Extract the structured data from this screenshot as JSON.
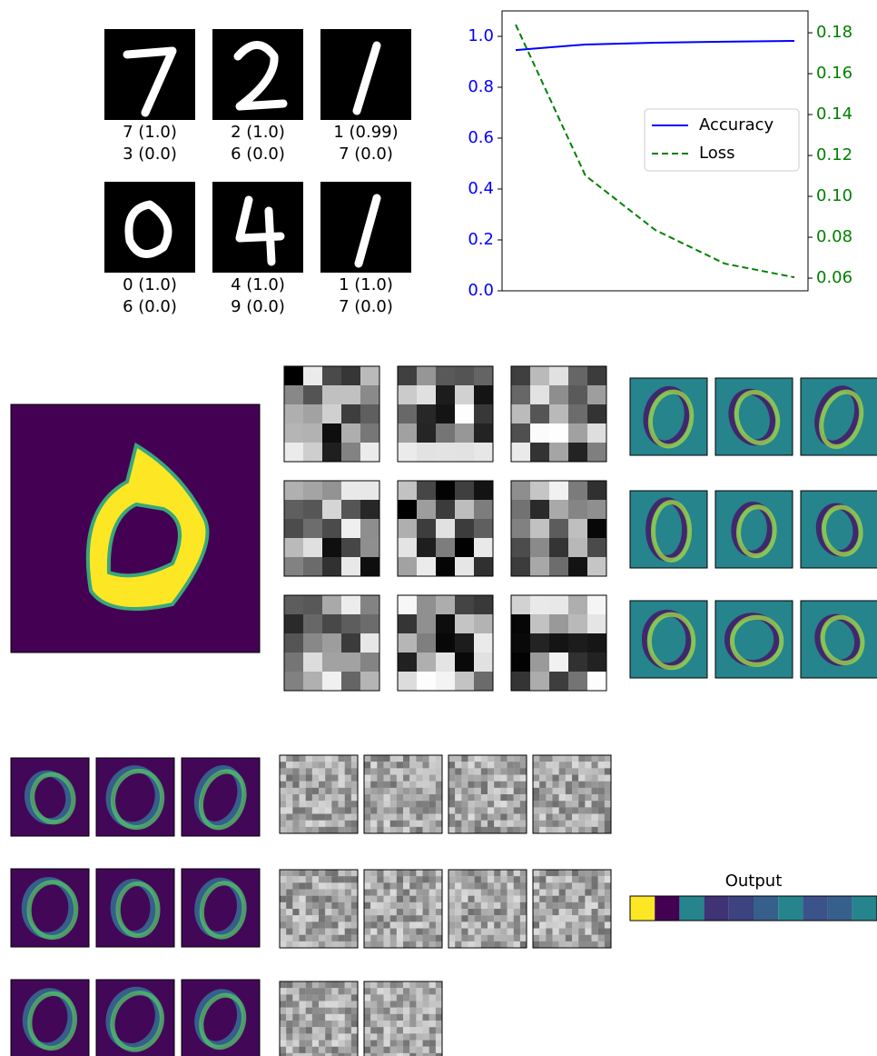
{
  "predictions": [
    [
      "7 (1.0)",
      "3 (0.0)"
    ],
    [
      "2 (1.0)",
      "6 (0.0)"
    ],
    [
      "1 (0.99)",
      "7 (0.0)"
    ],
    [
      "0 (1.0)",
      "6 (0.0)"
    ],
    [
      "4 (1.0)",
      "9 (0.0)"
    ],
    [
      "1 (1.0)",
      "7 (0.0)"
    ]
  ],
  "chart_data": [
    {
      "type": "line",
      "categories": [
        null,
        null,
        null,
        null,
        null
      ],
      "series": [
        {
          "name": "Accuracy",
          "color": "#0000ff",
          "values": [
            0.946,
            0.968,
            0.975,
            0.979,
            0.982
          ]
        },
        {
          "name": "Loss",
          "color": "#008000",
          "style": "dashed",
          "axis": "y2",
          "values": [
            0.184,
            0.1102,
            0.0836,
            0.0671,
            0.0604
          ]
        }
      ],
      "ylim": [
        0,
        1.1
      ],
      "yticks": [
        {
          "value": 0,
          "label": "0.0"
        },
        0.2,
        0.4,
        0.6,
        0.8,
        {
          "value": 1,
          "label": "1.0"
        }
      ],
      "y2lim": [
        0.0538,
        0.1907
      ],
      "y2ticks": [
        0.06,
        0.08,
        {
          "value": 0.1,
          "label": "0.10"
        },
        0.12,
        0.14,
        0.16,
        0.18
      ],
      "legend": "center right"
    },
    {
      "type": "heatmap",
      "title": "Output",
      "colormap": "viridis",
      "values": [
        1,
        0,
        0.45,
        0.15,
        0.2,
        0.3,
        0.45,
        0.25,
        0.3,
        0.45
      ]
    }
  ]
}
